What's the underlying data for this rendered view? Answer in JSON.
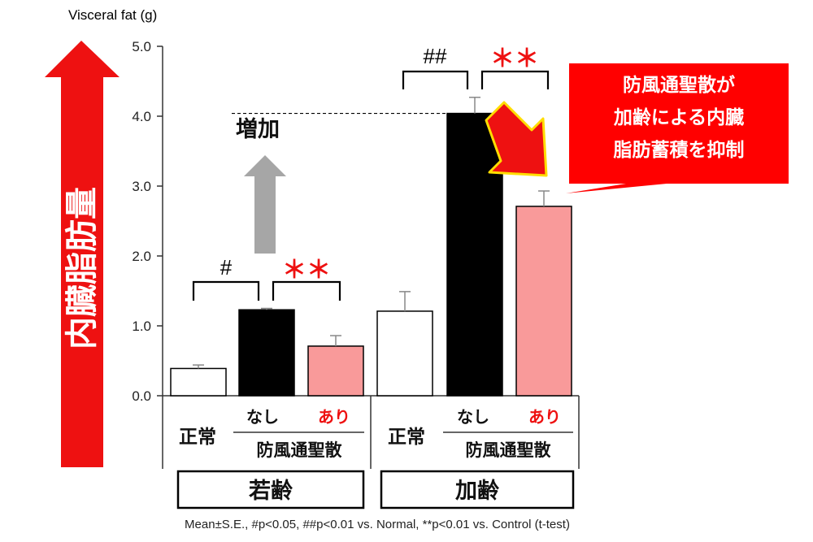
{
  "chart_data": {
    "type": "bar",
    "ylabel": "Visceral fat (g)",
    "ylim": [
      0,
      5
    ],
    "yticks": [
      "0.0",
      "1.0",
      "2.0",
      "3.0",
      "4.0",
      "5.0"
    ],
    "bars": [
      {
        "group": "若齢",
        "label": "正常",
        "value": 0.39,
        "error": 0.05,
        "color": "#ffffff"
      },
      {
        "group": "若齢",
        "label": "なし",
        "value": 1.23,
        "error": 0.02,
        "color": "#000000"
      },
      {
        "group": "若齢",
        "label": "あり",
        "value": 0.71,
        "error": 0.15,
        "color": "#f99a9a"
      },
      {
        "group": "加齢",
        "label": "正常",
        "value": 1.21,
        "error": 0.28,
        "color": "#ffffff"
      },
      {
        "group": "加齢",
        "label": "なし",
        "value": 4.04,
        "error": 0.23,
        "color": "#000000"
      },
      {
        "group": "加齢",
        "label": "あり",
        "value": 2.71,
        "error": 0.22,
        "color": "#f99a9a"
      }
    ],
    "treatment_label": "防風通聖散",
    "group_labels": [
      "若齢",
      "加齢"
    ],
    "significance": {
      "young_vs_normal": "#",
      "young_vs_control": "＊＊",
      "aged_vs_normal": "##",
      "aged_vs_control": "＊＊"
    },
    "annotations": {
      "increase_label": "増加",
      "callout_lines": [
        "防風通聖散が",
        "加齢による内臓",
        "脂肪蓄積を抑制"
      ],
      "big_arrow_label": "内臓脂肪量"
    },
    "footnote": "Mean±S.E., #p<0.05, ##p<0.01 vs. Normal, **p<0.01 vs. Control (t-test)"
  },
  "colors": {
    "accent_red": "#ee1111",
    "bar_pink": "#f99a9a",
    "arrow_gray": "#a6a6a6",
    "callout_red": "#ff0000",
    "callout_arrow": "#ee1111",
    "callout_arrow_edge": "#ffdd00"
  }
}
